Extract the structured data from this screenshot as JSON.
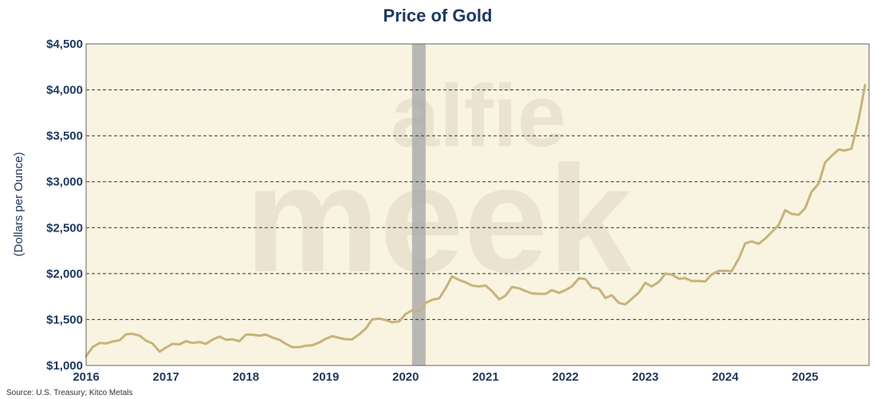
{
  "chart_data": {
    "type": "line",
    "title": "Price of Gold",
    "ylabel": "(Dollars per Ounce)",
    "xlabel": "",
    "source": "Source: U.S. Treasury; Kitco Metals",
    "watermark": [
      "alfie",
      "meek"
    ],
    "xlim": [
      2016,
      2025.8
    ],
    "ylim": [
      1000,
      4500
    ],
    "yticks": [
      1000,
      1500,
      2000,
      2500,
      3000,
      3500,
      4000,
      4500
    ],
    "ytick_labels": [
      "$1,000",
      "$1,500",
      "$2,000",
      "$2,500",
      "$3,000",
      "$3,500",
      "$4,000",
      "$4,500"
    ],
    "xticks": [
      2016,
      2017,
      2018,
      2019,
      2020,
      2021,
      2022,
      2023,
      2024,
      2025
    ],
    "xtick_labels": [
      "2016",
      "2017",
      "2018",
      "2019",
      "2020",
      "2021",
      "2022",
      "2023",
      "2024",
      "2025"
    ],
    "grid": "horizontal-dashed",
    "shaded_period": {
      "start": 2020.08,
      "end": 2020.25
    },
    "colors": {
      "line": "#c8b37a",
      "plot_background": "#f8f4e1",
      "title": "#1f3a60",
      "axis_text": "#1f3a60",
      "shade": "#a9a9a9",
      "watermark": "#e9e3d0"
    },
    "series": [
      {
        "name": "Gold price",
        "x": [
          2016.0,
          2016.08,
          2016.17,
          2016.25,
          2016.33,
          2016.42,
          2016.5,
          2016.58,
          2016.67,
          2016.75,
          2016.83,
          2016.92,
          2017.0,
          2017.08,
          2017.17,
          2017.25,
          2017.33,
          2017.42,
          2017.5,
          2017.58,
          2017.67,
          2017.75,
          2017.83,
          2017.92,
          2018.0,
          2018.08,
          2018.17,
          2018.25,
          2018.33,
          2018.42,
          2018.5,
          2018.58,
          2018.67,
          2018.75,
          2018.83,
          2018.92,
          2019.0,
          2019.08,
          2019.17,
          2019.25,
          2019.33,
          2019.42,
          2019.5,
          2019.58,
          2019.67,
          2019.75,
          2019.83,
          2019.92,
          2020.0,
          2020.08,
          2020.17,
          2020.25,
          2020.33,
          2020.42,
          2020.5,
          2020.58,
          2020.67,
          2020.75,
          2020.83,
          2020.92,
          2021.0,
          2021.08,
          2021.17,
          2021.25,
          2021.33,
          2021.42,
          2021.5,
          2021.58,
          2021.67,
          2021.75,
          2021.83,
          2021.92,
          2022.0,
          2022.08,
          2022.17,
          2022.25,
          2022.33,
          2022.42,
          2022.5,
          2022.58,
          2022.67,
          2022.75,
          2022.83,
          2022.92,
          2023.0,
          2023.08,
          2023.17,
          2023.25,
          2023.33,
          2023.42,
          2023.5,
          2023.58,
          2023.67,
          2023.75,
          2023.83,
          2023.92,
          2024.0,
          2024.08,
          2024.17,
          2024.25,
          2024.33,
          2024.42,
          2024.5,
          2024.58,
          2024.67,
          2024.75,
          2024.83,
          2024.92,
          2025.0,
          2025.08,
          2025.17,
          2025.25,
          2025.33,
          2025.42,
          2025.5,
          2025.58,
          2025.67,
          2025.75
        ],
        "values": [
          1100,
          1200,
          1245,
          1240,
          1260,
          1275,
          1340,
          1345,
          1325,
          1270,
          1240,
          1150,
          1195,
          1235,
          1230,
          1265,
          1245,
          1255,
          1235,
          1280,
          1315,
          1280,
          1285,
          1265,
          1335,
          1335,
          1325,
          1335,
          1305,
          1280,
          1235,
          1200,
          1200,
          1215,
          1220,
          1250,
          1290,
          1320,
          1300,
          1285,
          1285,
          1340,
          1400,
          1500,
          1510,
          1495,
          1470,
          1480,
          1560,
          1600,
          1595,
          1680,
          1715,
          1730,
          1840,
          1970,
          1930,
          1905,
          1870,
          1860,
          1870,
          1810,
          1720,
          1760,
          1855,
          1840,
          1810,
          1785,
          1780,
          1780,
          1820,
          1790,
          1820,
          1860,
          1950,
          1940,
          1850,
          1835,
          1735,
          1765,
          1680,
          1665,
          1725,
          1795,
          1900,
          1860,
          1910,
          2000,
          1990,
          1945,
          1950,
          1920,
          1920,
          1915,
          1990,
          2030,
          2030,
          2025,
          2165,
          2330,
          2350,
          2325,
          2380,
          2450,
          2530,
          2690,
          2650,
          2640,
          2710,
          2890,
          2980,
          3210,
          3280,
          3350,
          3340,
          3360,
          3680,
          4050
        ]
      }
    ]
  }
}
